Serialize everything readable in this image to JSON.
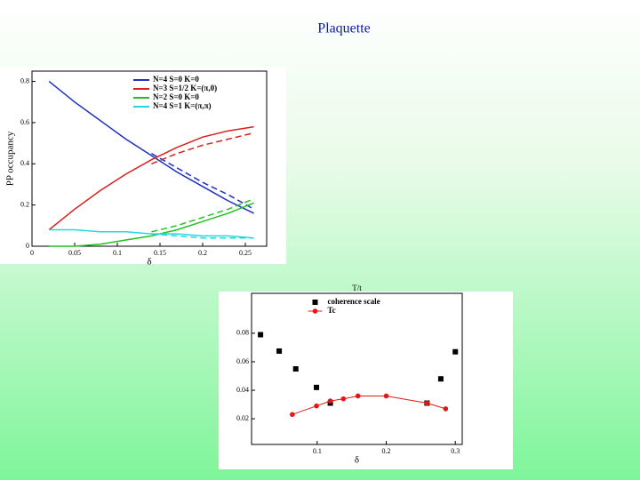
{
  "title": "Plaquette",
  "chart_data": [
    {
      "type": "line",
      "xlabel": "δ",
      "ylabel": "PP occupancy",
      "x": [
        0.02,
        0.05,
        0.08,
        0.11,
        0.14,
        0.17,
        0.2,
        0.23,
        0.26
      ],
      "series": [
        {
          "name": "N=4 S=0 K=0",
          "color": "#1f2fbf",
          "values": [
            0.8,
            0.7,
            0.61,
            0.52,
            0.44,
            0.36,
            0.29,
            0.22,
            0.16
          ],
          "dashed_values": [
            null,
            null,
            null,
            null,
            0.45,
            0.38,
            0.31,
            0.25,
            0.18
          ]
        },
        {
          "name": "N=3 S=1/2 K=(π,0)",
          "color": "#d81e1e",
          "values": [
            0.08,
            0.18,
            0.27,
            0.35,
            0.42,
            0.48,
            0.53,
            0.56,
            0.58
          ],
          "dashed_values": [
            null,
            null,
            null,
            null,
            0.4,
            0.45,
            0.49,
            0.52,
            0.55
          ]
        },
        {
          "name": "N=2 S=0 K=0",
          "color": "#22c022",
          "values": [
            0,
            0,
            0.01,
            0.03,
            0.05,
            0.08,
            0.12,
            0.16,
            0.21
          ],
          "dashed_values": [
            null,
            null,
            null,
            null,
            0.07,
            0.1,
            0.14,
            0.18,
            0.23
          ]
        },
        {
          "name": "N=4 S=1 K=(π,π)",
          "color": "#22d8e0",
          "values": [
            0.08,
            0.08,
            0.07,
            0.07,
            0.06,
            0.06,
            0.05,
            0.05,
            0.04
          ],
          "dashed_values": [
            null,
            null,
            null,
            null,
            0.06,
            0.05,
            0.04,
            0.04,
            0.04
          ]
        }
      ],
      "xlim": [
        0,
        0.275
      ],
      "xticks": [
        0,
        0.05,
        0.1,
        0.15,
        0.2,
        0.25
      ],
      "ylim": [
        0,
        0.85
      ],
      "yticks": [
        0,
        0.2,
        0.4,
        0.6,
        0.8
      ],
      "legend": "upper right"
    },
    {
      "type": "scatter",
      "xlabel": "δ",
      "top_label": "T/t",
      "series": [
        {
          "name": "coherence scale",
          "color": "#000000",
          "marker": "square",
          "line": false,
          "x": [
            0.018,
            0.045,
            0.069,
            0.099,
            0.119,
            0.259,
            0.279,
            0.3
          ],
          "values": [
            0.079,
            0.0675,
            0.055,
            0.042,
            0.031,
            0.031,
            0.048,
            0.067
          ]
        },
        {
          "name": "Tc",
          "color": "#e01818",
          "marker": "circle",
          "line": true,
          "x": [
            0.064,
            0.099,
            0.119,
            0.138,
            0.159,
            0.2,
            0.259,
            0.286
          ],
          "values": [
            0.023,
            0.029,
            0.0325,
            0.034,
            0.036,
            0.036,
            0.031,
            0.027
          ]
        }
      ],
      "xlim": [
        0.005,
        0.31
      ],
      "xticks": [
        0.1,
        0.2,
        0.3
      ],
      "ylim": [
        0.002,
        0.108
      ],
      "yticks": [
        0.02,
        0.04,
        0.06,
        0.08
      ],
      "legend": "upper center"
    }
  ]
}
